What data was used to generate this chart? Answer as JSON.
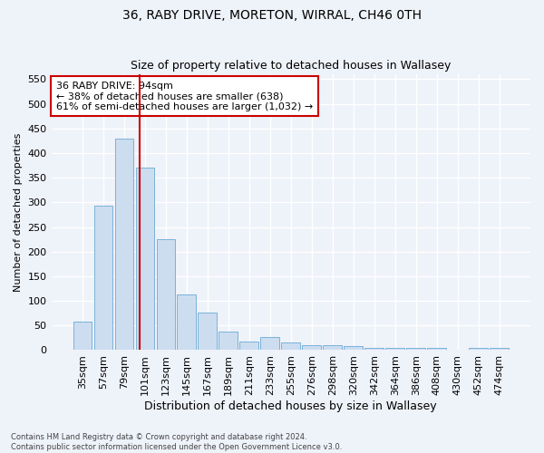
{
  "title": "36, RABY DRIVE, MORETON, WIRRAL, CH46 0TH",
  "subtitle": "Size of property relative to detached houses in Wallasey",
  "xlabel": "Distribution of detached houses by size in Wallasey",
  "ylabel": "Number of detached properties",
  "bar_labels": [
    "35sqm",
    "57sqm",
    "79sqm",
    "101sqm",
    "123sqm",
    "145sqm",
    "167sqm",
    "189sqm",
    "211sqm",
    "233sqm",
    "255sqm",
    "276sqm",
    "298sqm",
    "320sqm",
    "342sqm",
    "364sqm",
    "386sqm",
    "408sqm",
    "430sqm",
    "452sqm",
    "474sqm"
  ],
  "bar_values": [
    57,
    293,
    430,
    370,
    226,
    113,
    76,
    37,
    17,
    27,
    15,
    10,
    10,
    8,
    5,
    5,
    5,
    5,
    0,
    5,
    5
  ],
  "bar_color": "#ccddf0",
  "bar_edge_color": "#6aaad4",
  "vline_color": "#cc0000",
  "annotation_text": "36 RABY DRIVE: 94sqm\n← 38% of detached houses are smaller (638)\n61% of semi-detached houses are larger (1,032) →",
  "annotation_box_color": "#ffffff",
  "annotation_box_edge": "#cc0000",
  "ylim": [
    0,
    560
  ],
  "yticks": [
    0,
    50,
    100,
    150,
    200,
    250,
    300,
    350,
    400,
    450,
    500,
    550
  ],
  "footnote": "Contains HM Land Registry data © Crown copyright and database right 2024.\nContains public sector information licensed under the Open Government Licence v3.0.",
  "background_color": "#eef2f9",
  "axes_background": "#eef2f9",
  "grid_color": "#ffffff",
  "title_fontsize": 10,
  "subtitle_fontsize": 9,
  "xlabel_fontsize": 9,
  "ylabel_fontsize": 8,
  "tick_fontsize": 8,
  "annot_fontsize": 8
}
